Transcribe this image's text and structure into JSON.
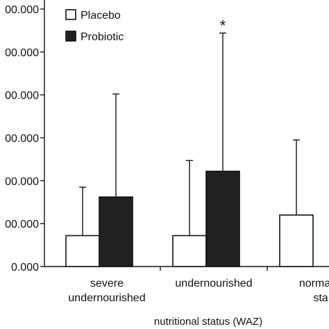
{
  "chart_data": {
    "type": "bar",
    "xlabel": "nutritional status (WAZ)",
    "ylabel": "",
    "title": "",
    "ylim": [
      0,
      6
    ],
    "y_ticks": [
      {
        "value": 0,
        "label": "0.000"
      },
      {
        "value": 1,
        "label": "00.000"
      },
      {
        "value": 2,
        "label": "00.000"
      },
      {
        "value": 3,
        "label": "00.000"
      },
      {
        "value": 4,
        "label": "00.000"
      },
      {
        "value": 5,
        "label": "00.000"
      },
      {
        "value": 6,
        "label": "00.000"
      }
    ],
    "categories": [
      {
        "lines": [
          "severe",
          "undernourished"
        ]
      },
      {
        "lines": [
          "undernourished"
        ]
      },
      {
        "lines": [
          "normal n",
          "sta"
        ]
      }
    ],
    "series": [
      {
        "name": "Placebo",
        "color": "#ffffff",
        "values": [
          0.72,
          0.72,
          1.2
        ],
        "error_upper": [
          1.85,
          2.47,
          2.95
        ]
      },
      {
        "name": "Probiotic",
        "color": "#222222",
        "values": [
          1.62,
          2.22,
          null
        ],
        "error_upper": [
          4.02,
          5.44,
          null
        ]
      }
    ],
    "annotations": [
      {
        "category_index": 1,
        "series": "Probiotic",
        "text": "*"
      }
    ],
    "legend_position": "top-left",
    "grid": false
  }
}
